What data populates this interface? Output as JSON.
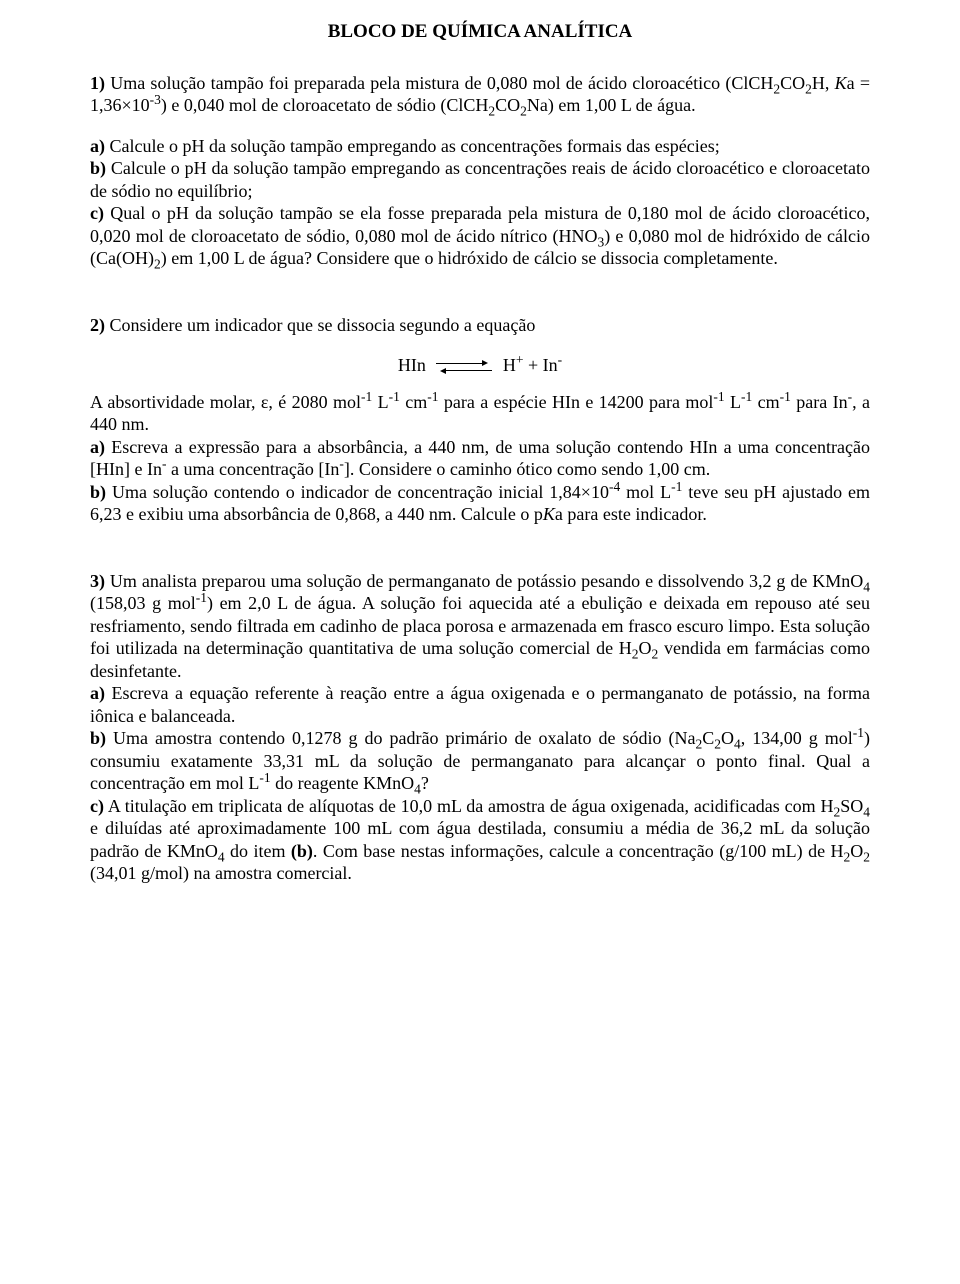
{
  "title": "BLOCO DE QUÍMICA ANALÍTICA",
  "q1": {
    "intro_html": "<b>1)</b> Uma solução tampão foi preparada pela mistura de 0,080 mol de ácido cloroacético (ClCH<sub>2</sub>CO<sub>2</sub>H, <i>K</i>a = 1,36×10<sup>-3</sup>) e 0,040 mol de cloroacetato de sódio (ClCH<sub>2</sub>CO<sub>2</sub>Na) em 1,00 L de água.",
    "body_html": "<b>a)</b> Calcule o pH da solução tampão empregando as concentrações formais das espécies;<br><b>b)</b> Calcule o pH da solução tampão empregando as concentrações reais de ácido cloroacético e cloroacetato de sódio no equilíbrio;<br><b>c)</b> Qual o pH da solução tampão se ela fosse preparada pela mistura de 0,180 mol de ácido cloroacético, 0,020 mol de cloroacetato de sódio, 0,080 mol de ácido nítrico (HNO<sub>3</sub>) e 0,080 mol de hidróxido de cálcio (Ca(OH)<sub>2</sub>) em 1,00 L de água? Considere que o hidróxido de cálcio se dissocia completamente."
  },
  "q2": {
    "intro_html": "<b>2)</b> Considere um indicador que se dissocia segundo a equação",
    "eq_left_html": "HIn",
    "eq_right_html": "H<sup>+</sup> + In<sup>-</sup>",
    "body_html": "A absortividade molar, ε, é 2080 mol<sup>-1</sup> L<sup>-1</sup> cm<sup>-1</sup> para a espécie HIn e 14200 para mol<sup>-1</sup> L<sup>-1</sup> cm<sup>-1</sup> para In<sup>-</sup>, a 440 nm.<br><b>a)</b> Escreva a expressão para a absorbância, a 440 nm, de uma solução contendo HIn a uma concentração [HIn] e In<sup>-</sup> a uma concentração [In<sup>-</sup>]. Considere o caminho ótico como sendo 1,00 cm.<br><b>b)</b> Uma solução contendo o indicador de concentração inicial 1,84×10<sup>-4</sup> mol L<sup>-1</sup> teve seu pH ajustado em 6,23 e exibiu uma absorbância de 0,868, a 440 nm. Calcule o p<i>K</i>a para este indicador."
  },
  "q3": {
    "body_html": "<b>3)</b> Um analista preparou uma solução de permanganato de potássio pesando e dissolvendo 3,2 g de KMnO<sub>4</sub> (158,03 g mol<sup>-1</sup>) em 2,0 L de água. A solução foi aquecida até a ebulição e deixada em repouso até seu resfriamento, sendo filtrada em cadinho de placa porosa e armazenada em frasco escuro limpo. Esta solução foi utilizada na determinação quantitativa de uma solução comercial de H<sub>2</sub>O<sub>2</sub> vendida em farmácias como desinfetante.<br><b>a)</b> Escreva a equação referente à reação entre a água oxigenada e o permanganato de potássio, na forma iônica e balanceada.<br><b>b)</b> Uma amostra contendo 0,1278 g do padrão primário de oxalato de sódio (Na<sub>2</sub>C<sub>2</sub>O<sub>4</sub>, 134,00 g mol<sup>-1</sup>) consumiu exatamente 33,31 mL da solução de permanganato para alcançar o ponto final. Qual a concentração em mol L<sup>-1</sup> do reagente KMnO<sub>4</sub>?<br><b>c)</b> A titulação em triplicata de alíquotas de 10,0 mL da amostra de água oxigenada, acidificadas com H<sub>2</sub>SO<sub>4</sub> e diluídas até aproximadamente 100 mL com água destilada, consumiu a média de 36,2 mL da solução padrão de KMnO<sub>4</sub> do item <b>(b)</b>. Com base nestas informações, calcule a concentração (g/100 mL) de H<sub>2</sub>O<sub>2</sub> (34,01 g/mol) na amostra comercial."
  }
}
